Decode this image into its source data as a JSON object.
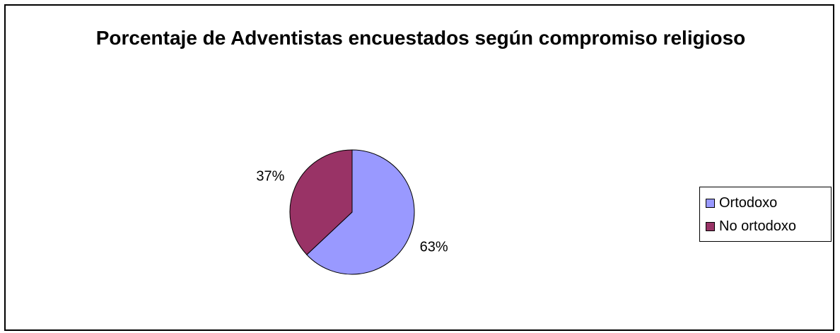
{
  "chart_data": {
    "type": "pie",
    "title": "Porcentaje de Adventistas encuestados según compromiso religioso",
    "categories": [
      "Ortodoxo",
      "No ortodoxo"
    ],
    "values": [
      63,
      37
    ],
    "labels": [
      "63%",
      "37%"
    ],
    "colors": [
      "#9999ff",
      "#993366"
    ],
    "legend_position": "right"
  }
}
